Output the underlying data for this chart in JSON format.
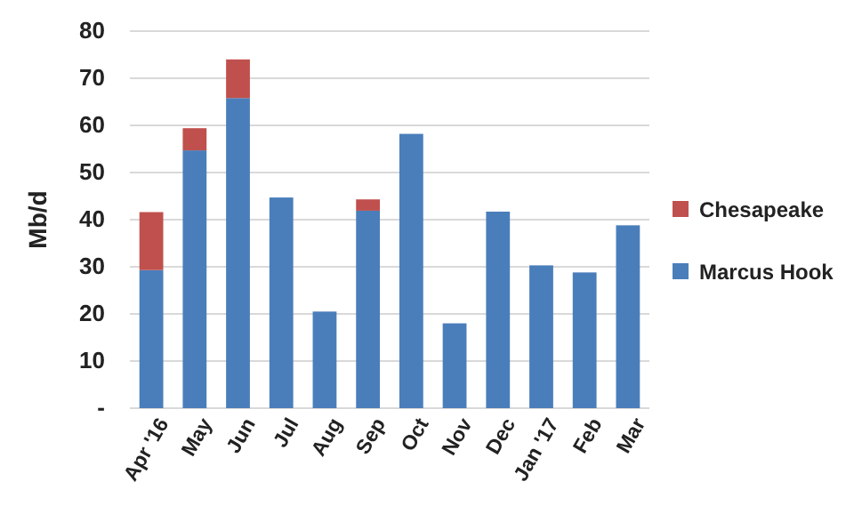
{
  "chart_data": {
    "type": "bar",
    "ylabel": "Mb/d",
    "categories": [
      "Apr '16",
      "May",
      "Jun",
      "Jul",
      "Aug",
      "Sep",
      "Oct",
      "Nov",
      "Dec",
      "Jan '17",
      "Feb",
      "Mar"
    ],
    "stacked": true,
    "series": [
      {
        "name": "Marcus Hook",
        "color": "#4a7ebb",
        "values": [
          29.3,
          54.7,
          65.8,
          44.7,
          20.5,
          41.9,
          58.2,
          18.0,
          41.7,
          30.3,
          28.8,
          38.8
        ]
      },
      {
        "name": "Chesapeake",
        "color": "#c0504d",
        "values": [
          12.3,
          4.7,
          8.2,
          null,
          null,
          2.4,
          null,
          null,
          null,
          null,
          null,
          null
        ]
      }
    ],
    "ylim": [
      0,
      80
    ],
    "yticks": [
      {
        "value": 0,
        "label": "-"
      },
      10,
      20,
      30,
      40,
      50,
      60,
      70,
      80
    ],
    "grid": "y",
    "legend": "right"
  }
}
